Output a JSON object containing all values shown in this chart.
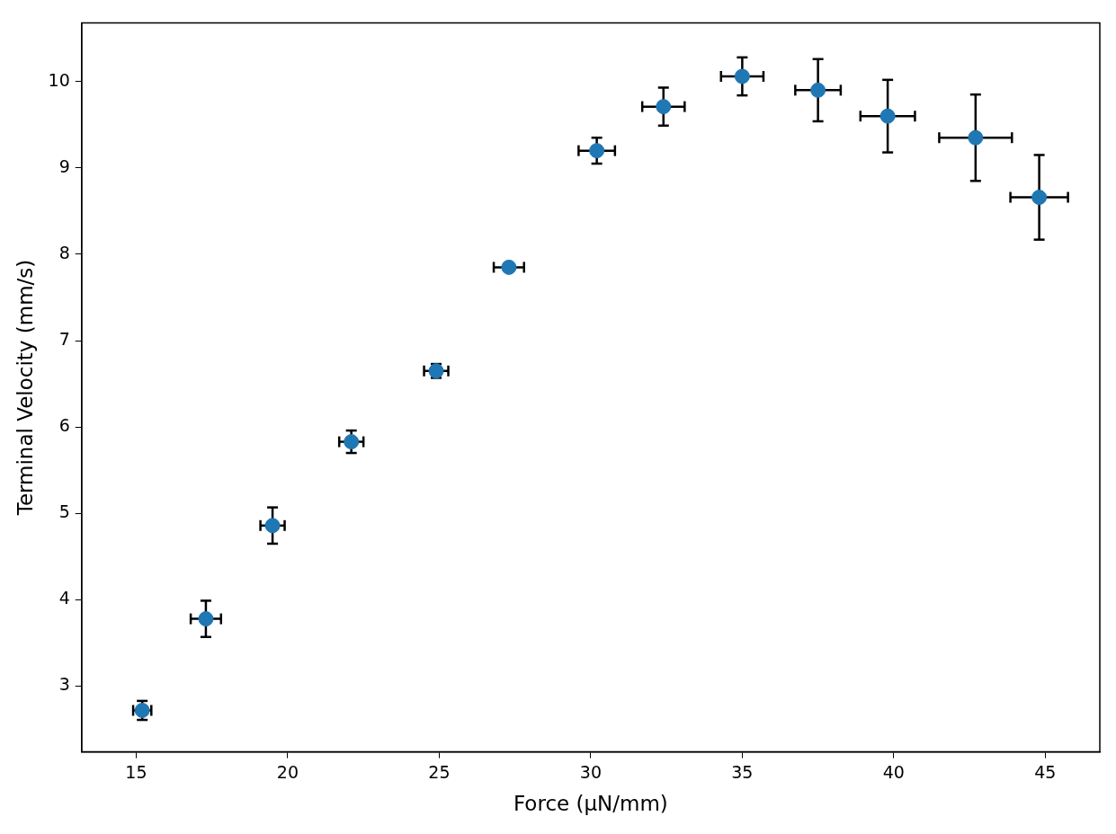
{
  "chart_data": {
    "type": "scatter",
    "xlabel": "Force (µN/mm)",
    "ylabel": "Terminal Velocity (mm/s)",
    "x": [
      15.2,
      17.3,
      19.5,
      22.1,
      24.9,
      27.3,
      30.2,
      32.4,
      35.0,
      37.5,
      39.8,
      42.7,
      44.8
    ],
    "series": [
      {
        "color": "#1f77b4",
        "values": [
          2.72,
          3.78,
          4.86,
          5.83,
          6.65,
          7.85,
          9.2,
          9.71,
          10.06,
          9.9,
          9.6,
          9.35,
          8.66
        ],
        "errors": [
          0.11,
          0.21,
          0.21,
          0.13,
          0.08,
          0.03,
          0.15,
          0.22,
          0.22,
          0.36,
          0.42,
          0.5,
          0.49
        ],
        "xerrors": [
          0.3,
          0.5,
          0.4,
          0.4,
          0.4,
          0.5,
          0.6,
          0.7,
          0.7,
          0.75,
          0.9,
          1.2,
          0.95
        ]
      }
    ],
    "xlim": [
      13.2,
      46.8
    ],
    "ylim": [
      2.24,
      10.68
    ],
    "xticks": [
      15,
      20,
      25,
      30,
      35,
      40,
      45
    ],
    "yticks": [
      3,
      4,
      5,
      6,
      7,
      8,
      9,
      10
    ],
    "marker": "circle"
  }
}
